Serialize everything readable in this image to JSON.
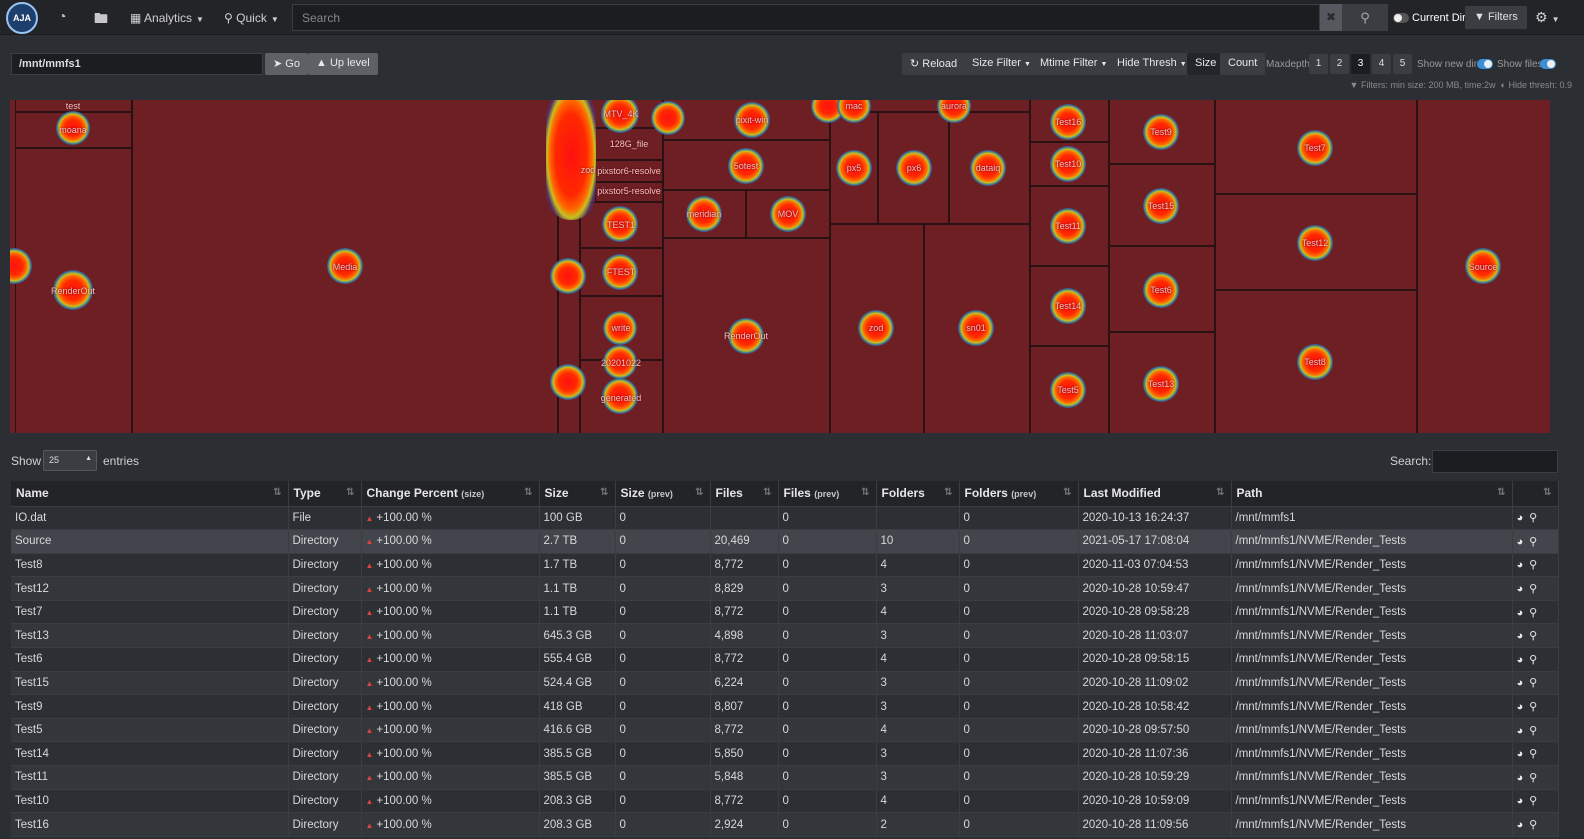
{
  "nav": {
    "logo_text": "AJA",
    "dashboard_icon": "dashboard-icon",
    "folder_icon": "folder-icon",
    "analytics_label": "Analytics",
    "quick_label": "Quick",
    "search_placeholder": "Search",
    "clear_label": "✖",
    "current_dir_label": "Current Dir",
    "filters_label": "Filters",
    "settings_icon": "gear-icon"
  },
  "toolbar": {
    "path_value": "/mnt/mmfs1",
    "go_label": "Go",
    "up_level_label": "Up level",
    "reload_label": "Reload",
    "size_filter_label": "Size Filter",
    "mtime_filter_label": "Mtime Filter",
    "hide_thresh_label": "Hide Thresh",
    "size_label": "Size",
    "count_label": "Count",
    "maxdepth_label": "Maxdepth:",
    "depths": [
      "1",
      "2",
      "3",
      "4",
      "5"
    ],
    "active_depth": "3",
    "show_new_dirs_label": "Show new dirs",
    "show_files_label": "Show files",
    "filters_info": "Filters: min size: 200 MB, time:2w",
    "hide_thresh_info": "Hide thresh: 0.9"
  },
  "treemap": {
    "labels": [
      "test",
      "moana",
      "RenderOut",
      "Media",
      "MTV_4K",
      "128G_file",
      "pixstor6-resolve",
      "pixstor5-resolve",
      "zod",
      "TEST1",
      "FTEST",
      "write",
      "20201022",
      "generated",
      "pixit-win",
      "mac",
      "aurora",
      "5otest",
      "px5",
      "px6",
      "dataiq",
      "meridian",
      "MOV",
      "RenderOut",
      "zod",
      "sn01",
      "Test16",
      "Test10",
      "Test11",
      "Test14",
      "Test5",
      "Test9",
      "Test15",
      "Test6",
      "Test13",
      "Test7",
      "Test12",
      "Test8",
      "Source"
    ]
  },
  "table": {
    "show_label": "Show",
    "entries_value": "25",
    "entries_label": "entries",
    "search_label": "Search:",
    "columns": [
      {
        "label": "Name",
        "sub": ""
      },
      {
        "label": "Type",
        "sub": ""
      },
      {
        "label": "Change Percent",
        "sub": "(size)"
      },
      {
        "label": "Size",
        "sub": ""
      },
      {
        "label": "Size",
        "sub": "(prev)"
      },
      {
        "label": "Files",
        "sub": ""
      },
      {
        "label": "Files",
        "sub": "(prev)"
      },
      {
        "label": "Folders",
        "sub": ""
      },
      {
        "label": "Folders",
        "sub": "(prev)"
      },
      {
        "label": "Last Modified",
        "sub": ""
      },
      {
        "label": "Path",
        "sub": ""
      }
    ],
    "rows": [
      {
        "name": "IO.dat",
        "type": "File",
        "change": "+100.00 %",
        "size": "100 GB",
        "size_prev": "0",
        "files": "",
        "files_prev": "0",
        "folders": "",
        "folders_prev": "0",
        "modified": "2020-10-13 16:24:37",
        "path": "/mnt/mmfs1"
      },
      {
        "name": "Source",
        "type": "Directory",
        "change": "+100.00 %",
        "size": "2.7 TB",
        "size_prev": "0",
        "files": "20,469",
        "files_prev": "0",
        "folders": "10",
        "folders_prev": "0",
        "modified": "2021-05-17 17:08:04",
        "path": "/mnt/mmfs1/NVME/Render_Tests"
      },
      {
        "name": "Test8",
        "type": "Directory",
        "change": "+100.00 %",
        "size": "1.7 TB",
        "size_prev": "0",
        "files": "8,772",
        "files_prev": "0",
        "folders": "4",
        "folders_prev": "0",
        "modified": "2020-11-03 07:04:53",
        "path": "/mnt/mmfs1/NVME/Render_Tests"
      },
      {
        "name": "Test12",
        "type": "Directory",
        "change": "+100.00 %",
        "size": "1.1 TB",
        "size_prev": "0",
        "files": "8,829",
        "files_prev": "0",
        "folders": "3",
        "folders_prev": "0",
        "modified": "2020-10-28 10:59:47",
        "path": "/mnt/mmfs1/NVME/Render_Tests"
      },
      {
        "name": "Test7",
        "type": "Directory",
        "change": "+100.00 %",
        "size": "1.1 TB",
        "size_prev": "0",
        "files": "8,772",
        "files_prev": "0",
        "folders": "4",
        "folders_prev": "0",
        "modified": "2020-10-28 09:58:28",
        "path": "/mnt/mmfs1/NVME/Render_Tests"
      },
      {
        "name": "Test13",
        "type": "Directory",
        "change": "+100.00 %",
        "size": "645.3 GB",
        "size_prev": "0",
        "files": "4,898",
        "files_prev": "0",
        "folders": "3",
        "folders_prev": "0",
        "modified": "2020-10-28 11:03:07",
        "path": "/mnt/mmfs1/NVME/Render_Tests"
      },
      {
        "name": "Test6",
        "type": "Directory",
        "change": "+100.00 %",
        "size": "555.4 GB",
        "size_prev": "0",
        "files": "8,772",
        "files_prev": "0",
        "folders": "4",
        "folders_prev": "0",
        "modified": "2020-10-28 09:58:15",
        "path": "/mnt/mmfs1/NVME/Render_Tests"
      },
      {
        "name": "Test15",
        "type": "Directory",
        "change": "+100.00 %",
        "size": "524.4 GB",
        "size_prev": "0",
        "files": "6,224",
        "files_prev": "0",
        "folders": "3",
        "folders_prev": "0",
        "modified": "2020-10-28 11:09:02",
        "path": "/mnt/mmfs1/NVME/Render_Tests"
      },
      {
        "name": "Test9",
        "type": "Directory",
        "change": "+100.00 %",
        "size": "418 GB",
        "size_prev": "0",
        "files": "8,807",
        "files_prev": "0",
        "folders": "3",
        "folders_prev": "0",
        "modified": "2020-10-28 10:58:42",
        "path": "/mnt/mmfs1/NVME/Render_Tests"
      },
      {
        "name": "Test5",
        "type": "Directory",
        "change": "+100.00 %",
        "size": "416.6 GB",
        "size_prev": "0",
        "files": "8,772",
        "files_prev": "0",
        "folders": "4",
        "folders_prev": "0",
        "modified": "2020-10-28 09:57:50",
        "path": "/mnt/mmfs1/NVME/Render_Tests"
      },
      {
        "name": "Test14",
        "type": "Directory",
        "change": "+100.00 %",
        "size": "385.5 GB",
        "size_prev": "0",
        "files": "5,850",
        "files_prev": "0",
        "folders": "3",
        "folders_prev": "0",
        "modified": "2020-10-28 11:07:36",
        "path": "/mnt/mmfs1/NVME/Render_Tests"
      },
      {
        "name": "Test11",
        "type": "Directory",
        "change": "+100.00 %",
        "size": "385.5 GB",
        "size_prev": "0",
        "files": "5,848",
        "files_prev": "0",
        "folders": "3",
        "folders_prev": "0",
        "modified": "2020-10-28 10:59:29",
        "path": "/mnt/mmfs1/NVME/Render_Tests"
      },
      {
        "name": "Test10",
        "type": "Directory",
        "change": "+100.00 %",
        "size": "208.3 GB",
        "size_prev": "0",
        "files": "8,772",
        "files_prev": "0",
        "folders": "4",
        "folders_prev": "0",
        "modified": "2020-10-28 10:59:09",
        "path": "/mnt/mmfs1/NVME/Render_Tests"
      },
      {
        "name": "Test16",
        "type": "Directory",
        "change": "+100.00 %",
        "size": "208.3 GB",
        "size_prev": "0",
        "files": "2,924",
        "files_prev": "0",
        "folders": "2",
        "folders_prev": "0",
        "modified": "2020-10-28 11:09:56",
        "path": "/mnt/mmfs1/NVME/Render_Tests"
      }
    ],
    "row_icons": [
      "fire-icon",
      "search-icon"
    ]
  }
}
